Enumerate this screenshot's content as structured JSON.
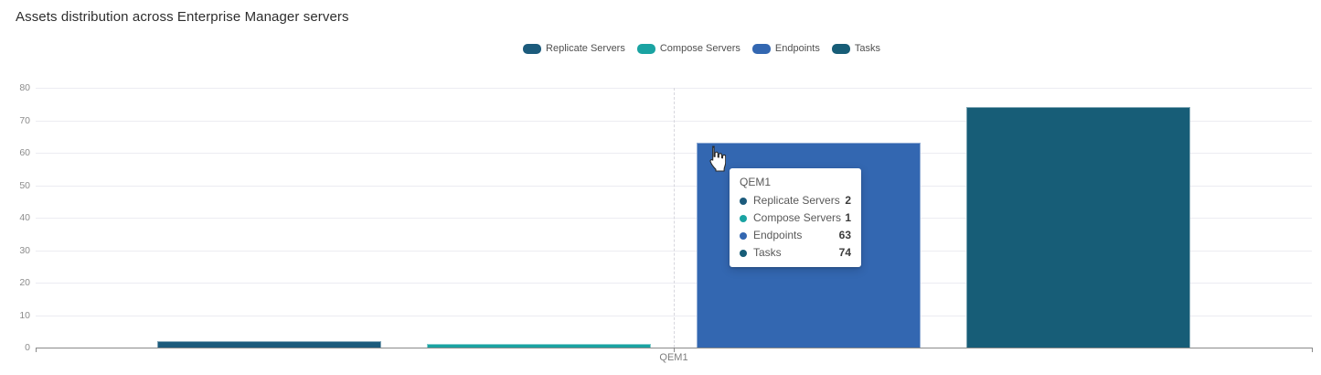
{
  "title": "Assets distribution across Enterprise Manager servers",
  "legend": [
    {
      "label": "Replicate Servers",
      "color": "#1c5b7c"
    },
    {
      "label": "Compose Servers",
      "color": "#1aa3a2"
    },
    {
      "label": "Endpoints",
      "color": "#3367b1"
    },
    {
      "label": "Tasks",
      "color": "#175d77"
    }
  ],
  "chart_data": {
    "type": "bar",
    "title": "Assets distribution across Enterprise Manager servers",
    "categories": [
      "QEM1"
    ],
    "series": [
      {
        "name": "Replicate Servers",
        "values": [
          2
        ],
        "color": "#1c5b7c"
      },
      {
        "name": "Compose Servers",
        "values": [
          1
        ],
        "color": "#1aa3a2"
      },
      {
        "name": "Endpoints",
        "values": [
          63
        ],
        "color": "#3367b1"
      },
      {
        "name": "Tasks",
        "values": [
          74
        ],
        "color": "#175d77"
      }
    ],
    "ylim": [
      0,
      80
    ],
    "yticks": [
      0,
      10,
      20,
      30,
      40,
      50,
      60,
      70,
      80
    ],
    "grid": true,
    "legend_position": "top-center",
    "xlabel": "",
    "ylabel": ""
  },
  "tooltip": {
    "title": "QEM1",
    "rows": [
      {
        "label": "Replicate Servers",
        "value": 2,
        "color": "#1c5b7c"
      },
      {
        "label": "Compose Servers",
        "value": 1,
        "color": "#1aa3a2"
      },
      {
        "label": "Endpoints",
        "value": 63,
        "color": "#3367b1"
      },
      {
        "label": "Tasks",
        "value": 74,
        "color": "#175d77"
      }
    ]
  }
}
